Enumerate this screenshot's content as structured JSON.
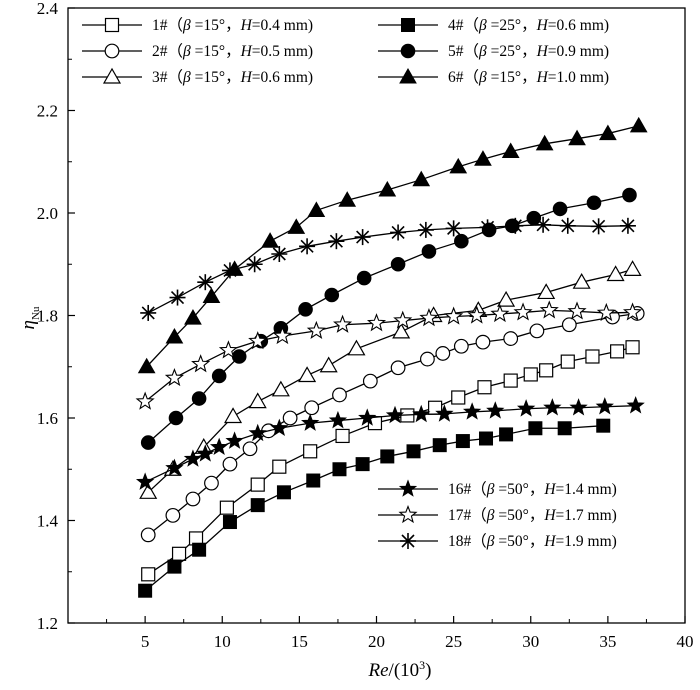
{
  "chart_data": {
    "type": "line",
    "title": "",
    "xlabel": "Re/(10³)",
    "ylabel": "ηNu",
    "xlim": [
      0,
      40
    ],
    "ylim": [
      1.2,
      2.4
    ],
    "xticks": [
      "5",
      "10",
      "15",
      "20",
      "25",
      "30",
      "35",
      "40"
    ],
    "yticks": [
      "1.2",
      "1.4",
      "1.6",
      "1.8",
      "2.0",
      "2.2",
      "2.4"
    ],
    "legend_top": [
      {
        "id": "1#",
        "beta": "15",
        "H": "0.4"
      },
      {
        "id": "2#",
        "beta": "15",
        "H": "0.5"
      },
      {
        "id": "3#",
        "beta": "15",
        "H": "0.6"
      },
      {
        "id": "4#",
        "beta": "25",
        "H": "0.6"
      },
      {
        "id": "5#",
        "beta": "25",
        "H": "0.9"
      },
      {
        "id": "6#",
        "beta": "15",
        "H": "1.0"
      }
    ],
    "legend_bottom": [
      {
        "id": "16#",
        "beta": "50",
        "H": "1.4"
      },
      {
        "id": "17#",
        "beta": "50",
        "H": "1.7"
      },
      {
        "id": "18#",
        "beta": "50",
        "H": "1.9"
      }
    ],
    "series": [
      {
        "name": "1#",
        "marker": "square-open",
        "x": [
          5.2,
          7.2,
          8.3,
          10.3,
          12.3,
          13.7,
          15.7,
          17.8,
          19.9,
          22,
          23.8,
          25.3,
          27,
          28.7,
          30,
          31,
          32.4,
          34,
          35.6,
          36.6
        ],
        "y": [
          1.295,
          1.335,
          1.365,
          1.425,
          1.47,
          1.505,
          1.535,
          1.565,
          1.59,
          1.605,
          1.62,
          1.64,
          1.66,
          1.673,
          1.685,
          1.693,
          1.71,
          1.72,
          1.73,
          1.738
        ]
      },
      {
        "name": "2#",
        "marker": "circle-open",
        "x": [
          5.2,
          6.8,
          8.1,
          9.3,
          10.5,
          11.8,
          13,
          14.4,
          15.8,
          17.6,
          19.6,
          21.4,
          23.3,
          24.3,
          25.5,
          26.9,
          28.7,
          30.4,
          32.5,
          35.3,
          36.9
        ],
        "y": [
          1.372,
          1.41,
          1.442,
          1.473,
          1.51,
          1.54,
          1.575,
          1.6,
          1.62,
          1.645,
          1.672,
          1.698,
          1.715,
          1.726,
          1.74,
          1.748,
          1.755,
          1.77,
          1.782,
          1.797,
          1.804
        ]
      },
      {
        "name": "3#",
        "marker": "triangle-open",
        "x": [
          5.2,
          6.8,
          8.8,
          10.7,
          12.3,
          13.8,
          15.5,
          16.9,
          18.7,
          21.6,
          23.7,
          26.6,
          28.4,
          31,
          33.3,
          35.5,
          36.6
        ],
        "y": [
          1.455,
          1.5,
          1.543,
          1.603,
          1.632,
          1.655,
          1.683,
          1.702,
          1.735,
          1.768,
          1.8,
          1.81,
          1.83,
          1.845,
          1.865,
          1.88,
          1.89
        ]
      },
      {
        "name": "4#",
        "marker": "square-filled",
        "x": [
          5,
          6.9,
          8.5,
          10.5,
          12.3,
          14,
          15.9,
          17.6,
          19.1,
          20.7,
          22.4,
          24.1,
          25.6,
          27.1,
          28.4,
          30.3,
          32.2,
          34.7
        ],
        "y": [
          1.263,
          1.31,
          1.343,
          1.397,
          1.43,
          1.455,
          1.478,
          1.5,
          1.51,
          1.525,
          1.535,
          1.547,
          1.555,
          1.56,
          1.568,
          1.58,
          1.58,
          1.585
        ]
      },
      {
        "name": "5#",
        "marker": "circle-filled",
        "x": [
          5.2,
          7,
          8.5,
          9.8,
          11.1,
          12.5,
          13.8,
          15.4,
          17.1,
          19.2,
          21.4,
          23.4,
          25.5,
          27.3,
          28.8,
          30.2,
          31.9,
          34.1,
          36.4
        ],
        "y": [
          1.552,
          1.6,
          1.638,
          1.682,
          1.72,
          1.75,
          1.775,
          1.812,
          1.84,
          1.873,
          1.9,
          1.925,
          1.945,
          1.967,
          1.975,
          1.99,
          2.008,
          2.02,
          2.035
        ]
      },
      {
        "name": "6#",
        "marker": "triangle-filled",
        "x": [
          5.1,
          6.9,
          8.1,
          9.3,
          10.8,
          13.1,
          14.8,
          16.1,
          18.1,
          20.7,
          22.9,
          25.3,
          26.9,
          28.7,
          30.9,
          33,
          35,
          37
        ],
        "y": [
          1.7,
          1.758,
          1.795,
          1.837,
          1.89,
          1.945,
          1.972,
          2.005,
          2.025,
          2.045,
          2.065,
          2.09,
          2.105,
          2.12,
          2.135,
          2.145,
          2.155,
          2.17
        ]
      },
      {
        "name": "16#",
        "marker": "star-filled",
        "x": [
          5,
          6.9,
          8.1,
          8.9,
          9.8,
          10.8,
          12.3,
          13.7,
          15.7,
          17.5,
          19.4,
          21.2,
          22.9,
          24.4,
          26.2,
          27.7,
          29.7,
          31.4,
          33.1,
          34.8,
          36.8
        ],
        "y": [
          1.475,
          1.502,
          1.52,
          1.53,
          1.543,
          1.555,
          1.57,
          1.58,
          1.59,
          1.595,
          1.6,
          1.605,
          1.607,
          1.608,
          1.612,
          1.614,
          1.618,
          1.62,
          1.62,
          1.622,
          1.624
        ]
      },
      {
        "name": "17#",
        "marker": "star-open",
        "x": [
          5,
          6.9,
          8.6,
          10.4,
          12.3,
          13.9,
          16.1,
          17.8,
          20,
          21.7,
          23.4,
          25,
          26.5,
          28,
          29.5,
          31.2,
          33,
          34.9,
          36.6
        ],
        "y": [
          1.632,
          1.678,
          1.705,
          1.732,
          1.75,
          1.76,
          1.77,
          1.782,
          1.785,
          1.79,
          1.795,
          1.798,
          1.8,
          1.803,
          1.806,
          1.81,
          1.808,
          1.805,
          1.806
        ]
      },
      {
        "name": "18#",
        "marker": "star-x",
        "x": [
          5.2,
          7.1,
          8.9,
          10.5,
          12.1,
          13.7,
          15.5,
          17.4,
          19.1,
          21.4,
          23.2,
          25,
          27.2,
          29,
          30.8,
          32.4,
          34.4,
          36.3
        ],
        "y": [
          1.805,
          1.835,
          1.865,
          1.888,
          1.9,
          1.92,
          1.935,
          1.945,
          1.953,
          1.962,
          1.967,
          1.97,
          1.972,
          1.975,
          1.977,
          1.975,
          1.974,
          1.975
        ]
      }
    ]
  }
}
